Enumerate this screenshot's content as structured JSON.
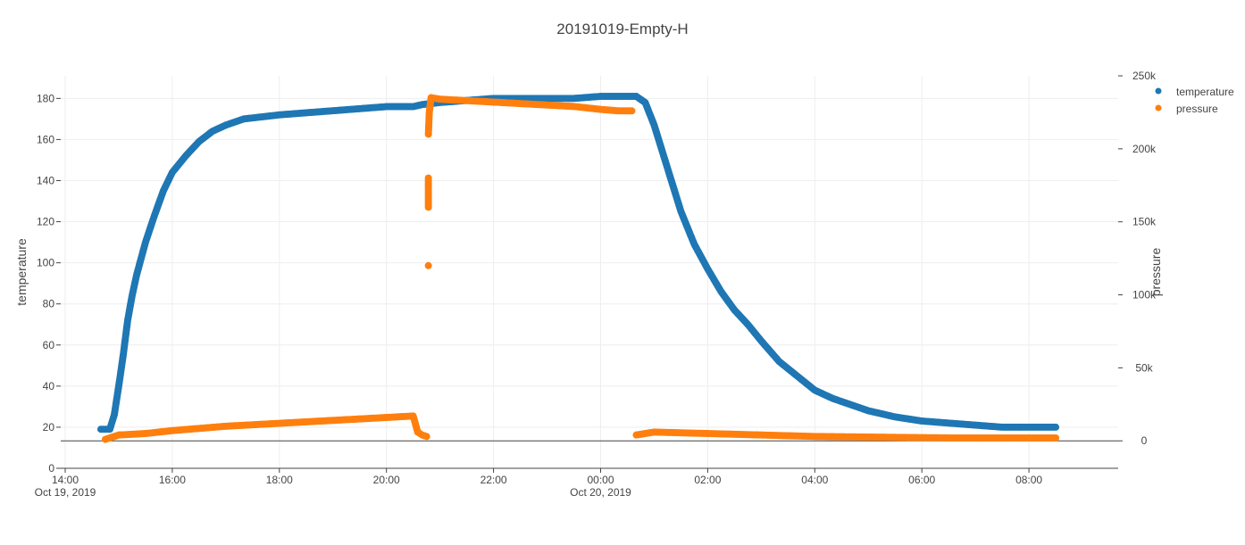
{
  "chart_data": {
    "type": "scatter",
    "title": "20191019-Empty-H",
    "x_axis": {
      "type": "date",
      "range": [
        "2019-10-19T13:55",
        "2019-10-20T09:40"
      ],
      "ticks": [
        {
          "value": "2019-10-19T14:00",
          "label": "14:00",
          "sublabel": "Oct 19, 2019"
        },
        {
          "value": "2019-10-19T16:00",
          "label": "16:00",
          "sublabel": ""
        },
        {
          "value": "2019-10-19T18:00",
          "label": "18:00",
          "sublabel": ""
        },
        {
          "value": "2019-10-19T20:00",
          "label": "20:00",
          "sublabel": ""
        },
        {
          "value": "2019-10-19T22:00",
          "label": "22:00",
          "sublabel": ""
        },
        {
          "value": "2019-10-20T00:00",
          "label": "00:00",
          "sublabel": "Oct 20, 2019"
        },
        {
          "value": "2019-10-20T02:00",
          "label": "02:00",
          "sublabel": ""
        },
        {
          "value": "2019-10-20T04:00",
          "label": "04:00",
          "sublabel": ""
        },
        {
          "value": "2019-10-20T06:00",
          "label": "06:00",
          "sublabel": ""
        },
        {
          "value": "2019-10-20T08:00",
          "label": "08:00",
          "sublabel": ""
        }
      ]
    },
    "y_axis_left": {
      "label": "temperature",
      "range": [
        0,
        191
      ],
      "ticks": [
        0,
        20,
        40,
        60,
        80,
        100,
        120,
        140,
        160,
        180
      ],
      "tick_labels": [
        "0",
        "20",
        "40",
        "60",
        "80",
        "100",
        "120",
        "140",
        "160",
        "180"
      ]
    },
    "y_axis_right": {
      "label": "pressure",
      "range": [
        -18800,
        250000
      ],
      "ticks": [
        0,
        50000,
        100000,
        150000,
        200000,
        250000
      ],
      "tick_labels": [
        "0",
        "50k",
        "100k",
        "150k",
        "200k",
        "250k"
      ]
    },
    "legend": {
      "position": "top-right",
      "entries": [
        "temperature",
        "pressure"
      ]
    },
    "grid": true,
    "colors": {
      "temperature": "#1f77b4",
      "pressure": "#ff7f0e"
    },
    "series": [
      {
        "name": "temperature",
        "axis": "left",
        "x": [
          "2019-10-19T14:40",
          "2019-10-19T14:50",
          "2019-10-19T14:55",
          "2019-10-19T15:00",
          "2019-10-19T15:05",
          "2019-10-19T15:10",
          "2019-10-19T15:15",
          "2019-10-19T15:20",
          "2019-10-19T15:30",
          "2019-10-19T15:40",
          "2019-10-19T15:50",
          "2019-10-19T16:00",
          "2019-10-19T16:15",
          "2019-10-19T16:30",
          "2019-10-19T16:45",
          "2019-10-19T17:00",
          "2019-10-19T17:20",
          "2019-10-19T17:40",
          "2019-10-19T18:00",
          "2019-10-19T18:30",
          "2019-10-19T19:00",
          "2019-10-19T19:30",
          "2019-10-19T20:00",
          "2019-10-19T20:30",
          "2019-10-19T20:40",
          "2019-10-19T21:00",
          "2019-10-19T21:30",
          "2019-10-19T22:00",
          "2019-10-19T22:30",
          "2019-10-19T23:00",
          "2019-10-19T23:30",
          "2019-10-20T00:00",
          "2019-10-20T00:20",
          "2019-10-20T00:40",
          "2019-10-20T00:50",
          "2019-10-20T01:00",
          "2019-10-20T01:10",
          "2019-10-20T01:20",
          "2019-10-20T01:30",
          "2019-10-20T01:45",
          "2019-10-20T02:00",
          "2019-10-20T02:15",
          "2019-10-20T02:30",
          "2019-10-20T02:45",
          "2019-10-20T03:00",
          "2019-10-20T03:20",
          "2019-10-20T03:40",
          "2019-10-20T04:00",
          "2019-10-20T04:20",
          "2019-10-20T04:40",
          "2019-10-20T05:00",
          "2019-10-20T05:30",
          "2019-10-20T06:00",
          "2019-10-20T06:30",
          "2019-10-20T07:00",
          "2019-10-20T07:30",
          "2019-10-20T08:00",
          "2019-10-20T08:30"
        ],
        "values": [
          19,
          19,
          26,
          40,
          55,
          72,
          84,
          94,
          110,
          123,
          135,
          144,
          152,
          159,
          164,
          167,
          170,
          171,
          172,
          173,
          174,
          175,
          176,
          176,
          177,
          178,
          179,
          180,
          180,
          180,
          180,
          181,
          181,
          181,
          178,
          167,
          153,
          139,
          125,
          109,
          97,
          86,
          77,
          70,
          62,
          52,
          45,
          38,
          34,
          31,
          28,
          25,
          23,
          22,
          21,
          20,
          20,
          20
        ]
      },
      {
        "name": "pressure",
        "axis": "right",
        "x": [
          "2019-10-19T14:45",
          "2019-10-19T14:50",
          "2019-10-19T15:00",
          "2019-10-19T15:15",
          "2019-10-19T15:30",
          "2019-10-19T15:45",
          "2019-10-19T16:00",
          "2019-10-19T16:20",
          "2019-10-19T16:40",
          "2019-10-19T17:00",
          "2019-10-19T17:30",
          "2019-10-19T18:00",
          "2019-10-19T18:30",
          "2019-10-19T19:00",
          "2019-10-19T19:30",
          "2019-10-19T20:00",
          "2019-10-19T20:30",
          "2019-10-19T20:35",
          "2019-10-19T20:40",
          "2019-10-19T20:45",
          "2019-10-19T20:47",
          "2019-10-19T20:47",
          "2019-10-19T20:47",
          "2019-10-19T20:47",
          "2019-10-19T20:48",
          "2019-10-19T20:50",
          "2019-10-19T21:00",
          "2019-10-19T21:30",
          "2019-10-19T22:00",
          "2019-10-19T22:30",
          "2019-10-19T23:00",
          "2019-10-19T23:30",
          "2019-10-20T00:00",
          "2019-10-20T00:20",
          "2019-10-20T00:35",
          "2019-10-20T00:40",
          "2019-10-20T00:50",
          "2019-10-20T01:00",
          "2019-10-20T01:30",
          "2019-10-20T02:00",
          "2019-10-20T02:30",
          "2019-10-20T03:00",
          "2019-10-20T03:30",
          "2019-10-20T04:00",
          "2019-10-20T04:30",
          "2019-10-20T05:00",
          "2019-10-20T05:30",
          "2019-10-20T06:00",
          "2019-10-20T06:30",
          "2019-10-20T07:00",
          "2019-10-20T07:30",
          "2019-10-20T08:00",
          "2019-10-20T08:30"
        ],
        "values": [
          1000,
          2000,
          4000,
          4500,
          5000,
          6000,
          7000,
          8000,
          9000,
          10000,
          11000,
          12000,
          13000,
          14000,
          15000,
          16000,
          17000,
          6000,
          4000,
          3000,
          120000,
          160000,
          180000,
          210000,
          225000,
          235000,
          234000,
          233000,
          232000,
          231000,
          230000,
          229000,
          227000,
          226000,
          226000,
          4000,
          5000,
          6000,
          5500,
          5000,
          4500,
          4000,
          3500,
          3000,
          2800,
          2600,
          2400,
          2200,
          2000,
          2000,
          2000,
          2000,
          2000
        ]
      }
    ]
  }
}
